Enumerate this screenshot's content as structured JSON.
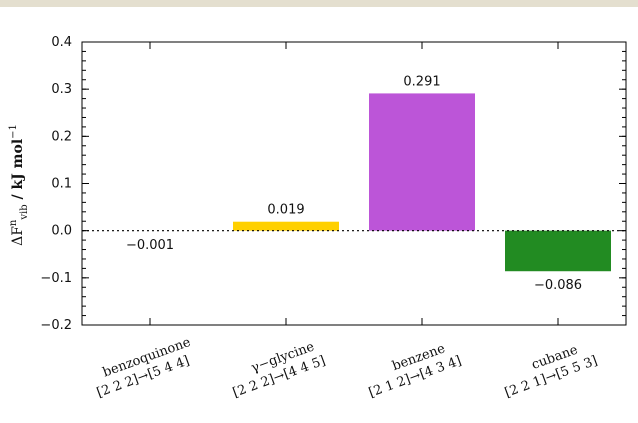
{
  "chart_data": {
    "type": "bar",
    "ylabel": "ΔF",
    "ylabel_superscript": "n",
    "ylabel_subscript": "vib",
    "ylabel_unit": " / kJ mol",
    "ylabel_unit_superscript": "−1",
    "ylim": [
      -0.2,
      0.4
    ],
    "yticks": [
      -0.2,
      -0.1,
      0.0,
      0.1,
      0.2,
      0.3,
      0.4
    ],
    "ytick_labels": [
      "−0.2",
      "−0.1",
      "0.0",
      "0.1",
      "0.2",
      "0.3",
      "0.4"
    ],
    "zero_line": "dotted",
    "categories": [
      {
        "name": "benzoquinone",
        "grid": "[2 2 2]→[5 4 4]"
      },
      {
        "name": "γ−glycine",
        "grid": "[2 2 2]→[4 4 5]"
      },
      {
        "name": "benzene",
        "grid": "[2 1 2]→[4 3 4]"
      },
      {
        "name": "cubane",
        "grid": "[2 2 1]→[5 5 3]"
      }
    ],
    "values": [
      -0.001,
      0.019,
      0.291,
      -0.086
    ],
    "value_labels": [
      "−0.001",
      "0.019",
      "0.291",
      "−0.086"
    ],
    "colors": [
      "#ffffff",
      "#ffd000",
      "#bc55d8",
      "#228b22"
    ]
  }
}
